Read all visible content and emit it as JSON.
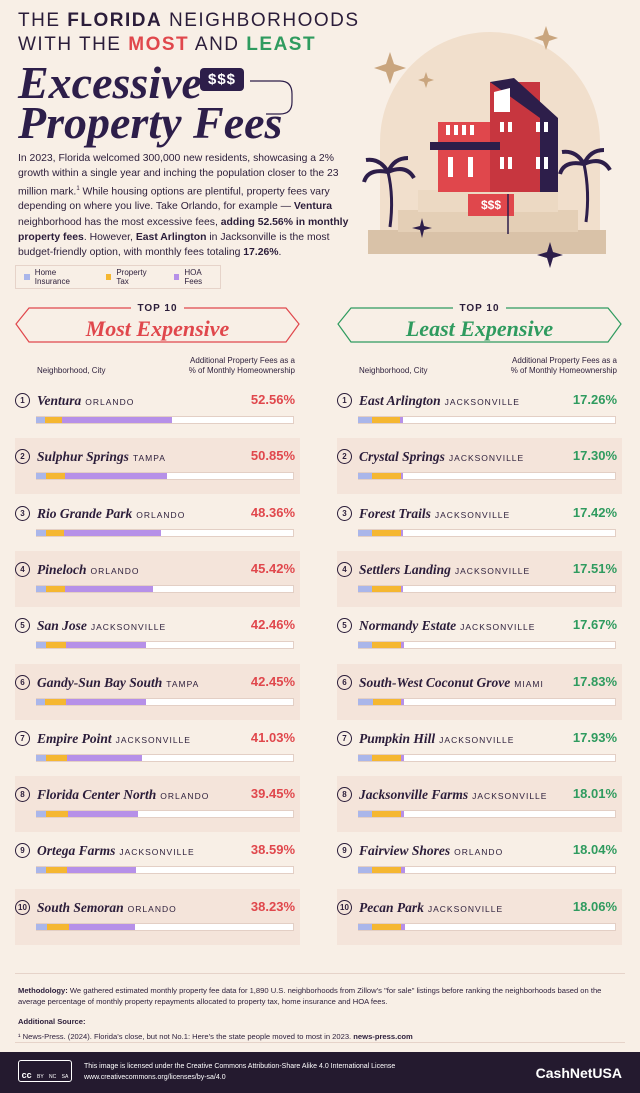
{
  "header": {
    "line1": [
      "THE",
      "FLORIDA",
      "NEIGHBORHOODS"
    ],
    "line2": [
      "WITH THE",
      "MOST",
      "AND",
      "LEAST"
    ],
    "title_line1": "Excessive",
    "price_tag": "$$$",
    "title_line2": "Property Fees"
  },
  "intro": [
    {
      "text": "In 2023, Florida welcomed 300,000 new residents, showcasing a 2% growth within a single year and inching the population closer to the 23 million mark."
    },
    {
      "text": "1",
      "style": "sup"
    },
    {
      "text": " While housing options are plentiful, property fees vary depending on where you live. Take Orlando, for example — "
    },
    {
      "text": "Ventura",
      "style": "bold"
    },
    {
      "text": " neighborhood has the most excessive fees, "
    },
    {
      "text": "adding 52.56% in monthly property fees",
      "style": "bold"
    },
    {
      "text": ". However, "
    },
    {
      "text": "East Arlington",
      "style": "bold"
    },
    {
      "text": " in Jacksonville is the most budget-friendly option, with monthly fees totaling "
    },
    {
      "text": "17.26%",
      "style": "bold"
    },
    {
      "text": "."
    }
  ],
  "illustration": {
    "sign": "$$$"
  },
  "chart_data": {
    "type": "stacked-bar",
    "series": [
      {
        "name": "Home Insurance",
        "color": "#aab6ea"
      },
      {
        "name": "Property Tax",
        "color": "#f5b731"
      },
      {
        "name": "HOA Fees",
        "color": "#b690e8"
      }
    ],
    "xlim": [
      0,
      100
    ],
    "panels": [
      {
        "badge": "TOP 10",
        "title": "Most Expensive",
        "color": "#e0474c",
        "column_left": "Neighborhood, City",
        "column_right": [
          "Additional Property Fees as a",
          "% of Monthly Homeownership"
        ],
        "rows": [
          {
            "rank": 1,
            "neighborhood": "Ventura",
            "city": "ORLANDO",
            "value": 52.56,
            "value_label": "52.56%",
            "segments": [
              3.5,
              6.6,
              42.46
            ]
          },
          {
            "rank": 2,
            "neighborhood": "Sulphur Springs",
            "city": "TAMPA",
            "value": 50.85,
            "value_label": "50.85%",
            "segments": [
              3.9,
              7.4,
              39.55
            ]
          },
          {
            "rank": 3,
            "neighborhood": "Rio Grande Park",
            "city": "ORLANDO",
            "value": 48.36,
            "value_label": "48.36%",
            "segments": [
              3.9,
              7.0,
              37.46
            ]
          },
          {
            "rank": 4,
            "neighborhood": "Pineloch",
            "city": "ORLANDO",
            "value": 45.42,
            "value_label": "45.42%",
            "segments": [
              3.9,
              7.4,
              34.12
            ]
          },
          {
            "rank": 5,
            "neighborhood": "San Jose",
            "city": "JACKSONVILLE",
            "value": 42.46,
            "value_label": "42.46%",
            "segments": [
              3.9,
              7.8,
              30.76
            ]
          },
          {
            "rank": 6,
            "neighborhood": "Gandy-Sun Bay South",
            "city": "TAMPA",
            "value": 42.45,
            "value_label": "42.45%",
            "segments": [
              3.5,
              8.1,
              30.85
            ]
          },
          {
            "rank": 7,
            "neighborhood": "Empire Point",
            "city": "JACKSONVILLE",
            "value": 41.03,
            "value_label": "41.03%",
            "segments": [
              3.9,
              8.1,
              29.03
            ]
          },
          {
            "rank": 8,
            "neighborhood": "Florida Center North",
            "city": "ORLANDO",
            "value": 39.45,
            "value_label": "39.45%",
            "segments": [
              3.9,
              8.5,
              27.05
            ]
          },
          {
            "rank": 9,
            "neighborhood": "Ortega Farms",
            "city": "JACKSONVILLE",
            "value": 38.59,
            "value_label": "38.59%",
            "segments": [
              3.9,
              8.1,
              26.59
            ]
          },
          {
            "rank": 10,
            "neighborhood": "South Semoran",
            "city": "ORLANDO",
            "value": 38.23,
            "value_label": "38.23%",
            "segments": [
              4.3,
              8.5,
              25.43
            ]
          }
        ]
      },
      {
        "badge": "TOP 10",
        "title": "Least Expensive",
        "color": "#2f9b5f",
        "column_left": "Neighborhood, City",
        "column_right": [
          "Additional Property Fees as a",
          "% of Monthly Homeownership"
        ],
        "rows": [
          {
            "rank": 1,
            "neighborhood": "East Arlington",
            "city": "JACKSONVILLE",
            "value": 17.26,
            "value_label": "17.26%",
            "segments": [
              5.5,
              10.9,
              0.86
            ]
          },
          {
            "rank": 2,
            "neighborhood": "Crystal Springs",
            "city": "JACKSONVILLE",
            "value": 17.3,
            "value_label": "17.30%",
            "segments": [
              5.5,
              11.0,
              0.8
            ]
          },
          {
            "rank": 3,
            "neighborhood": "Forest Trails",
            "city": "JACKSONVILLE",
            "value": 17.42,
            "value_label": "17.42%",
            "segments": [
              5.5,
              11.0,
              0.92
            ]
          },
          {
            "rank": 4,
            "neighborhood": "Settlers Landing",
            "city": "JACKSONVILLE",
            "value": 17.51,
            "value_label": "17.51%",
            "segments": [
              5.5,
              11.0,
              1.01
            ]
          },
          {
            "rank": 5,
            "neighborhood": "Normandy Estate",
            "city": "JACKSONVILLE",
            "value": 17.67,
            "value_label": "17.67%",
            "segments": [
              5.5,
              11.2,
              0.97
            ]
          },
          {
            "rank": 6,
            "neighborhood": "South-West Coconut Grove",
            "city": "MIAMI",
            "value": 17.83,
            "value_label": "17.83%",
            "segments": [
              5.9,
              10.9,
              1.03
            ]
          },
          {
            "rank": 7,
            "neighborhood": "Pumpkin Hill",
            "city": "JACKSONVILLE",
            "value": 17.93,
            "value_label": "17.93%",
            "segments": [
              5.5,
              11.0,
              1.43
            ]
          },
          {
            "rank": 8,
            "neighborhood": "Jacksonville Farms",
            "city": "JACKSONVILLE",
            "value": 18.01,
            "value_label": "18.01%",
            "segments": [
              5.5,
              11.0,
              1.51
            ]
          },
          {
            "rank": 9,
            "neighborhood": "Fairview Shores",
            "city": "ORLANDO",
            "value": 18.04,
            "value_label": "18.04%",
            "segments": [
              5.5,
              11.0,
              1.54
            ]
          },
          {
            "rank": 10,
            "neighborhood": "Pecan Park",
            "city": "JACKSONVILLE",
            "value": 18.06,
            "value_label": "18.06%",
            "segments": [
              5.5,
              11.0,
              1.56
            ]
          }
        ]
      }
    ]
  },
  "methodology": {
    "label": "Methodology:",
    "text": "We gathered estimated monthly property fee data for 1,890 U.S. neighborhoods from Zillow’s \"for sale\" listings before ranking the neighborhoods based on the average percentage of monthly property repayments allocated to property tax, home insurance and HOA fees."
  },
  "source": {
    "label": "Additional Source:",
    "text": "¹ News-Press. (2024). Florida’s close, but not No.1: Here’s the state people moved to most in 2023.",
    "link": "news-press.com"
  },
  "footer": {
    "cc_icons": [
      "cc",
      "BY",
      "NC",
      "SA"
    ],
    "license": "This image is licensed under the Creative Commons Attribution-Share Alike 4.0 International License",
    "license_url": "www.creativecommons.org/licenses/by-sa/4.0",
    "brand": "CashNetUSA"
  }
}
